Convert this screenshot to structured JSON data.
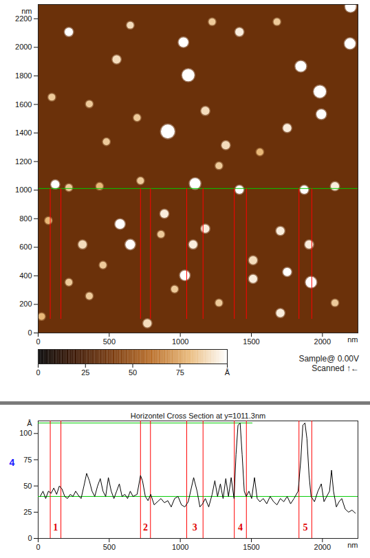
{
  "chart_data": [
    {
      "type": "heatmap",
      "x_label": "nm",
      "y_label": "nm",
      "xlim": [
        0,
        2250
      ],
      "ylim": [
        0,
        2300
      ],
      "xticks": [
        0,
        500,
        1000,
        1500,
        2000
      ],
      "yticks": [
        0,
        200,
        400,
        600,
        800,
        1000,
        1200,
        1400,
        1600,
        1800,
        2000,
        2200
      ],
      "background_height": 35,
      "particles": {
        "x": [
          216,
          648,
          1022,
          1224,
          1416,
          1680,
          2198,
          2194,
          552,
          1848,
          1056,
          1982,
          96,
          360,
          696,
          1176,
          1992,
          1752,
          912,
          480,
          1320,
          1560,
          2088,
          120,
          216,
          432,
          720,
          1104,
          1416,
          1872,
          1272,
          576,
          888,
          1176,
          648,
          864,
          1090,
          1704,
          1906,
          1512,
          72,
          312,
          216,
          1032,
          1512,
          1920,
          360,
          1272,
          24,
          768,
          1704,
          1752,
          456,
          2088,
          960
        ],
        "y": [
          2107,
          2155,
          2035,
          2179,
          2107,
          2179,
          2285,
          2026,
          1915,
          1867,
          1805,
          1690,
          1651,
          1603,
          1507,
          1555,
          1531,
          1435,
          1411,
          1339,
          1315,
          1267,
          1027,
          1040,
          1018,
          1027,
          1066,
          1046,
          1003,
          1003,
          1171,
          763,
          835,
          730,
          619,
          691,
          619,
          715,
          619,
          509,
          787,
          619,
          355,
          403,
          379,
          355,
          259,
          211,
          115,
          67,
          139,
          427,
          475,
          211,
          307
        ],
        "r": [
          29,
          24,
          34,
          24,
          29,
          24,
          38,
          38,
          29,
          38,
          43,
          43,
          24,
          24,
          24,
          29,
          34,
          29,
          48,
          24,
          29,
          24,
          29,
          29,
          24,
          24,
          24,
          38,
          29,
          29,
          24,
          34,
          29,
          29,
          34,
          24,
          29,
          29,
          29,
          29,
          24,
          29,
          24,
          34,
          29,
          38,
          24,
          24,
          24,
          29,
          29,
          29,
          24,
          24,
          24
        ],
        "height": [
          100,
          90,
          100,
          85,
          95,
          85,
          110,
          110,
          90,
          110,
          100,
          110,
          85,
          85,
          85,
          90,
          105,
          95,
          110,
          85,
          90,
          80,
          95,
          100,
          85,
          80,
          85,
          110,
          100,
          105,
          85,
          100,
          95,
          95,
          100,
          85,
          95,
          95,
          95,
          90,
          80,
          90,
          85,
          100,
          95,
          110,
          85,
          85,
          80,
          90,
          95,
          100,
          85,
          85,
          85
        ]
      },
      "scan_line_y": 1011.3,
      "colorbar": {
        "range": [
          0,
          100
        ],
        "ticks": [
          0,
          25,
          50,
          75,
          {
            "value": 100,
            "label": "Å"
          }
        ]
      },
      "side_text": [
        "Sample@ 0.00V",
        "Scanned ↑←"
      ]
    },
    {
      "type": "line",
      "title": "Horizontel Cross Section at y=1011.3nm",
      "x_label": "nm",
      "y_label": "Å",
      "xlim": [
        0,
        2250
      ],
      "ylim": [
        0,
        112
      ],
      "xticks": [
        0,
        500,
        1000,
        1500,
        2000
      ],
      "yticks": [
        0,
        25,
        50,
        75,
        100
      ],
      "color": "#000000",
      "x": [
        14,
        34,
        53,
        72,
        91,
        110,
        130,
        149,
        168,
        187,
        206,
        226,
        245,
        264,
        283,
        302,
        322,
        341,
        360,
        379,
        398,
        418,
        437,
        456,
        475,
        494,
        514,
        533,
        552,
        571,
        590,
        610,
        629,
        648,
        667,
        696,
        720,
        734,
        754,
        773,
        792,
        816,
        840,
        864,
        888,
        912,
        936,
        960,
        984,
        1008,
        1032,
        1056,
        1094,
        1118,
        1138,
        1157,
        1176,
        1200,
        1224,
        1243,
        1262,
        1282,
        1301,
        1320,
        1339,
        1358,
        1378,
        1392,
        1406,
        1421,
        1435,
        1450,
        1464,
        1483,
        1502,
        1522,
        1541,
        1560,
        1584,
        1608,
        1632,
        1656,
        1680,
        1704,
        1728,
        1752,
        1776,
        1800,
        1829,
        1848,
        1862,
        1877,
        1891,
        1906,
        1920,
        1944,
        1968,
        1992,
        2011,
        2030,
        2050,
        2064,
        2078,
        2098,
        2117,
        2136,
        2160,
        2184,
        2208,
        2232
      ],
      "values": [
        40,
        45,
        38,
        45,
        43,
        48,
        42,
        50,
        47,
        40,
        38,
        42,
        40,
        45,
        41,
        38,
        50,
        62,
        55,
        45,
        40,
        50,
        57,
        45,
        40,
        58,
        45,
        38,
        45,
        52,
        40,
        42,
        38,
        45,
        40,
        42,
        60,
        55,
        40,
        36,
        42,
        32,
        35,
        38,
        34,
        36,
        30,
        38,
        40,
        32,
        30,
        35,
        58,
        45,
        30,
        33,
        38,
        30,
        42,
        55,
        40,
        52,
        38,
        57,
        40,
        58,
        38,
        80,
        108,
        110,
        80,
        45,
        40,
        45,
        38,
        58,
        38,
        35,
        38,
        33,
        40,
        35,
        32,
        38,
        35,
        40,
        33,
        38,
        45,
        75,
        108,
        110,
        95,
        60,
        40,
        35,
        45,
        52,
        35,
        40,
        45,
        65,
        45,
        30,
        35,
        38,
        28,
        25,
        27,
        24
      ],
      "cursor_lines": [
        {
          "y": 110,
          "x": [
            0,
            1510
          ]
        },
        {
          "y": 40,
          "x": [
            0,
            2250
          ]
        }
      ],
      "annotation": {
        "text": "4",
        "y": 72,
        "color": "#1a1aff"
      },
      "marker_pairs": [
        [
          85,
          160
        ],
        [
          720,
          790
        ],
        [
          1045,
          1160
        ],
        [
          1380,
          1465
        ],
        [
          1835,
          1925
        ]
      ],
      "marker_labels": [
        "1",
        "2",
        "3",
        "4",
        "5"
      ]
    }
  ]
}
